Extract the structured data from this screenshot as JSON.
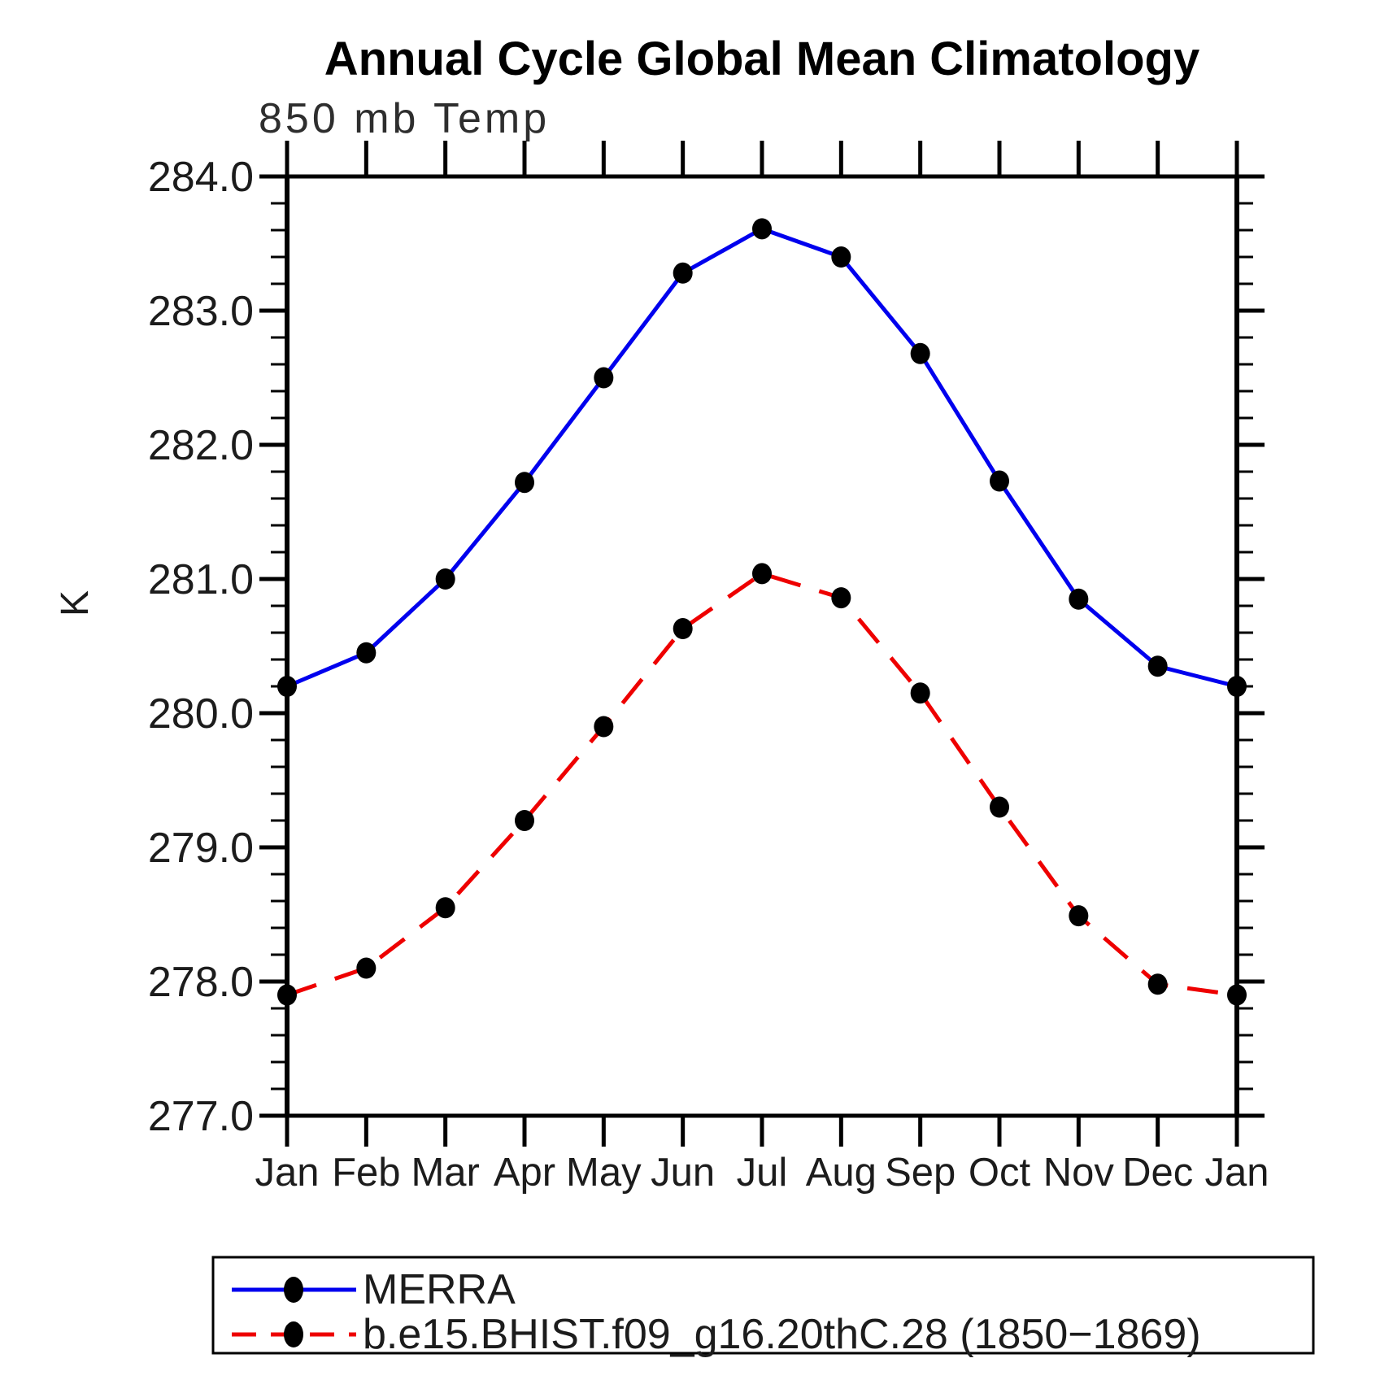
{
  "page": {
    "background": "#ffffff"
  },
  "chart": {
    "title": "Annual Cycle Global Mean Climatology",
    "subtitle": "850 mb Temp",
    "y_axis_label": "K",
    "colors": {
      "axis": "#000000",
      "marker": "#000000",
      "merra_line": "#0000ee",
      "model_line": "#ee0000"
    }
  },
  "legend": {
    "items": [
      {
        "label": "MERRA",
        "color": "#0000ee",
        "style": "solid"
      },
      {
        "label": "b.e15.BHIST.f09_g16.20thC.28 (1850−1869)",
        "color": "#ee0000",
        "style": "dashed"
      }
    ]
  },
  "chart_data": {
    "type": "line",
    "title": "Annual Cycle Global Mean Climatology",
    "subtitle": "850 mb Temp",
    "xlabel": "",
    "ylabel": "K",
    "categories": [
      "Jan",
      "Feb",
      "Mar",
      "Apr",
      "May",
      "Jun",
      "Jul",
      "Aug",
      "Sep",
      "Oct",
      "Nov",
      "Dec",
      "Jan"
    ],
    "ylim": [
      277.0,
      284.0
    ],
    "y_major_step": 1.0,
    "y_minor_step": 0.2,
    "grid": false,
    "legend_position": "bottom",
    "marker": "filled-circle",
    "series": [
      {
        "name": "MERRA",
        "color": "#0000ee",
        "line_style": "solid",
        "values": [
          280.2,
          280.45,
          281.0,
          281.72,
          282.5,
          283.28,
          283.61,
          283.4,
          282.68,
          281.73,
          280.85,
          280.35,
          280.2
        ]
      },
      {
        "name": "b.e15.BHIST.f09_g16.20thC.28 (1850−1869)",
        "color": "#ee0000",
        "line_style": "dashed",
        "values": [
          277.9,
          278.1,
          278.55,
          279.2,
          279.9,
          280.63,
          281.04,
          280.86,
          280.15,
          279.3,
          278.49,
          277.98,
          277.9
        ]
      }
    ]
  }
}
